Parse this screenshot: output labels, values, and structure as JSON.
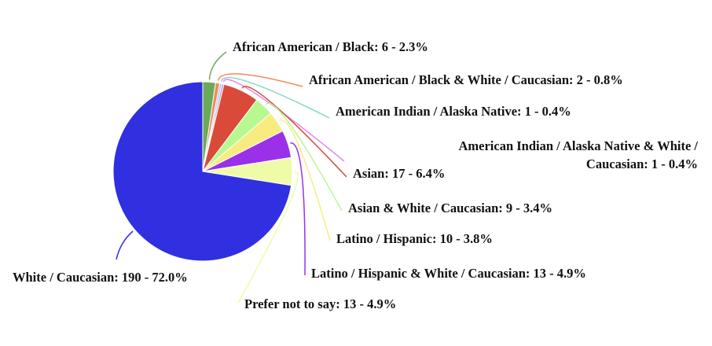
{
  "chart_data": {
    "type": "pie",
    "title": "",
    "legend": "none",
    "slices": [
      {
        "label": "African American / Black: 6 - 2.3%",
        "name": "African American / Black",
        "count": 6,
        "percent": 2.3,
        "color": "#6aaa5a"
      },
      {
        "label": "African American / Black & White / Caucasian: 2 - 0.8%",
        "name": "African American / Black & White / Caucasian",
        "count": 2,
        "percent": 0.8,
        "color": "#f08a5d"
      },
      {
        "label": "American Indian / Alaska Native: 1 - 0.4%",
        "name": "American Indian / Alaska Native",
        "count": 1,
        "percent": 0.4,
        "color": "#8ad8c8"
      },
      {
        "label_lines": [
          "American Indian / Alaska Native & White /",
          "Caucasian: 1 - 0.4%"
        ],
        "name": "American Indian / Alaska Native & White / Caucasian",
        "count": 1,
        "percent": 0.4,
        "color": "#e08ae8"
      },
      {
        "label": "Asian: 17 - 6.4%",
        "name": "Asian",
        "count": 17,
        "percent": 6.4,
        "color": "#d94a38"
      },
      {
        "label": "Asian & White / Caucasian: 9 - 3.4%",
        "name": "Asian & White / Caucasian",
        "count": 9,
        "percent": 3.4,
        "color": "#b8f890"
      },
      {
        "label": "Latino / Hispanic: 10 - 3.8%",
        "name": "Latino / Hispanic",
        "count": 10,
        "percent": 3.8,
        "color": "#f8ec80"
      },
      {
        "label": "Latino / Hispanic & White / Caucasian: 13 - 4.9%",
        "name": "Latino / Hispanic & White / Caucasian",
        "count": 13,
        "percent": 4.9,
        "color": "#9a30e8"
      },
      {
        "label": "Prefer not to say: 13 - 4.9%",
        "name": "Prefer not to say",
        "count": 13,
        "percent": 4.9,
        "color": "#eefca8"
      },
      {
        "label": "White / Caucasian: 190 - 72.0%",
        "name": "White / Caucasian",
        "count": 190,
        "percent": 72.0,
        "color": "#3030e0"
      }
    ]
  }
}
